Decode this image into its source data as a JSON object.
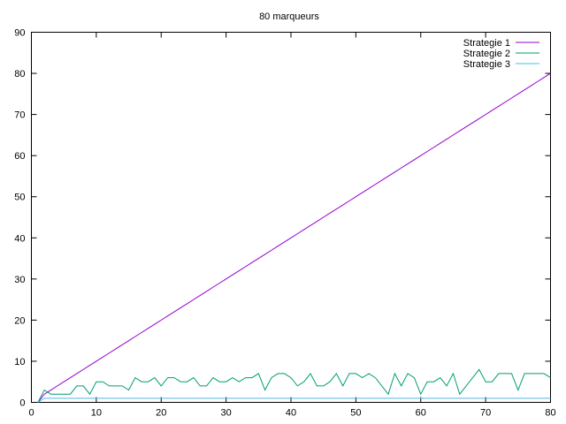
{
  "chart_data": {
    "type": "line",
    "title": "80 marqueurs",
    "xlabel": "",
    "ylabel": "",
    "xlim": [
      0,
      80
    ],
    "ylim": [
      0,
      90
    ],
    "xticks": [
      0,
      10,
      20,
      30,
      40,
      50,
      60,
      70,
      80
    ],
    "yticks": [
      0,
      10,
      20,
      30,
      40,
      50,
      60,
      70,
      80,
      90
    ],
    "grid": false,
    "legend": "top-right",
    "x": [
      1,
      2,
      3,
      4,
      5,
      6,
      7,
      8,
      9,
      10,
      11,
      12,
      13,
      14,
      15,
      16,
      17,
      18,
      19,
      20,
      21,
      22,
      23,
      24,
      25,
      26,
      27,
      28,
      29,
      30,
      31,
      32,
      33,
      34,
      35,
      36,
      37,
      38,
      39,
      40,
      41,
      42,
      43,
      44,
      45,
      46,
      47,
      48,
      49,
      50,
      51,
      52,
      53,
      54,
      55,
      56,
      57,
      58,
      59,
      60,
      61,
      62,
      63,
      64,
      65,
      66,
      67,
      68,
      69,
      70,
      71,
      72,
      73,
      74,
      75,
      76,
      77,
      78,
      79,
      80
    ],
    "series": [
      {
        "name": "Strategie 1",
        "color": "#9400d3",
        "values": [
          0,
          2,
          3,
          4,
          5,
          6,
          7,
          8,
          9,
          10,
          11,
          12,
          13,
          14,
          15,
          16,
          17,
          18,
          19,
          20,
          21,
          22,
          23,
          24,
          25,
          26,
          27,
          28,
          29,
          30,
          31,
          32,
          33,
          34,
          35,
          36,
          37,
          38,
          39,
          40,
          41,
          42,
          43,
          44,
          45,
          46,
          47,
          48,
          49,
          50,
          51,
          52,
          53,
          54,
          55,
          56,
          57,
          58,
          59,
          60,
          61,
          62,
          63,
          64,
          65,
          66,
          67,
          68,
          69,
          70,
          71,
          72,
          73,
          74,
          75,
          76,
          77,
          78,
          79,
          80
        ]
      },
      {
        "name": "Strategie 2",
        "color": "#009e73",
        "values": [
          0,
          3,
          2,
          2,
          2,
          2,
          4,
          4,
          2,
          5,
          5,
          4,
          4,
          4,
          3,
          6,
          5,
          5,
          6,
          4,
          6,
          6,
          5,
          5,
          6,
          4,
          4,
          6,
          5,
          5,
          6,
          5,
          6,
          6,
          7,
          3,
          6,
          7,
          7,
          6,
          4,
          5,
          7,
          4,
          4,
          5,
          7,
          4,
          7,
          7,
          6,
          7,
          6,
          4,
          2,
          7,
          4,
          7,
          6,
          2,
          5,
          5,
          6,
          4,
          7,
          2,
          4,
          6,
          8,
          5,
          5,
          7,
          7,
          7,
          3,
          7,
          7,
          7,
          7,
          6
        ]
      },
      {
        "name": "Strategie 3",
        "color": "#56b4e9",
        "values": [
          0,
          1,
          1,
          1,
          1,
          1,
          1,
          1,
          1,
          1,
          1,
          1,
          1,
          1,
          1,
          1,
          1,
          1,
          1,
          1,
          1,
          1,
          1,
          1,
          1,
          1,
          1,
          1,
          1,
          1,
          1,
          1,
          1,
          1,
          1,
          1,
          1,
          1,
          1,
          1,
          1,
          1,
          1,
          1,
          1,
          1,
          1,
          1,
          1,
          1,
          1,
          1,
          1,
          1,
          1,
          1,
          1,
          1,
          1,
          1,
          1,
          1,
          1,
          1,
          1,
          1,
          1,
          1,
          1,
          1,
          1,
          1,
          1,
          1,
          1,
          1,
          1,
          1,
          1,
          1
        ]
      }
    ]
  }
}
